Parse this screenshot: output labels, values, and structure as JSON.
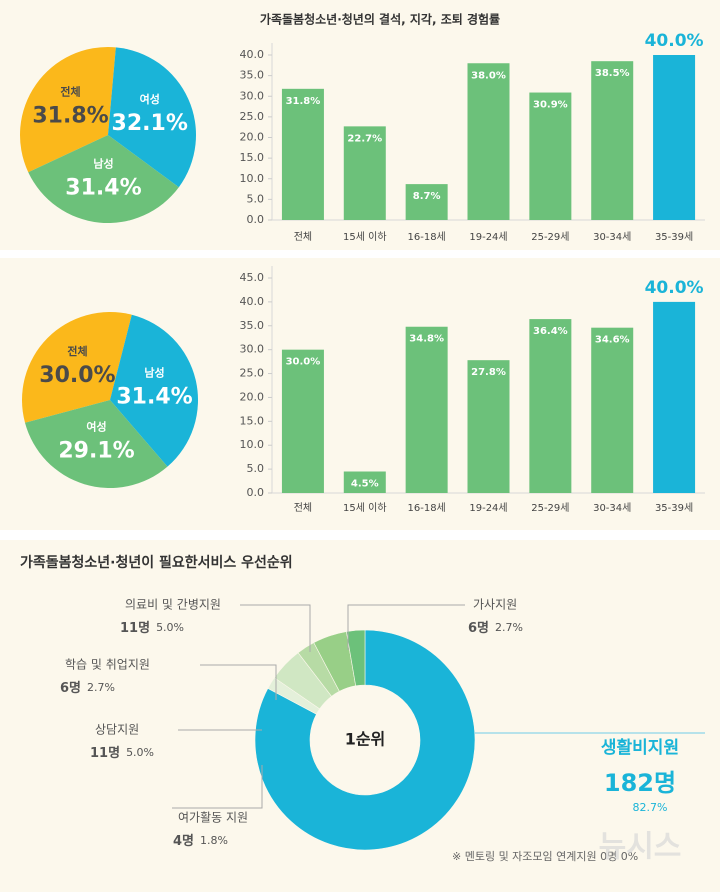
{
  "chart_data": [
    {
      "type": "pie",
      "categories": [
        "전체",
        "여성",
        "남성"
      ],
      "values": [
        31.8,
        32.1,
        31.4
      ],
      "value_labels": [
        "31.8%",
        "32.1%",
        "31.4%"
      ],
      "colors": [
        "#fbb81b",
        "#1ab4d8",
        "#6cc17a"
      ]
    },
    {
      "type": "bar",
      "title": "가족돌봄청소년·청년의 결석, 지각, 조퇴 경험률",
      "categories": [
        "전체",
        "15세 이하",
        "16-18세",
        "19-24세",
        "25-29세",
        "30-34세",
        "35-39세"
      ],
      "values": [
        31.8,
        22.7,
        8.7,
        38.0,
        30.9,
        38.5,
        40.0
      ],
      "value_labels": [
        "31.8%",
        "22.7%",
        "8.7%",
        "38.0%",
        "30.9%",
        "38.5%",
        "40.0%"
      ],
      "colors": [
        "#6cc17a",
        "#6cc17a",
        "#6cc17a",
        "#6cc17a",
        "#6cc17a",
        "#6cc17a",
        "#1ab4d8"
      ],
      "ylim": [
        0,
        40
      ],
      "yticks": [
        {
          "value": 0,
          "label": "0.0"
        },
        {
          "value": 5,
          "label": "5.0"
        },
        {
          "value": 10,
          "label": "10.0"
        },
        {
          "value": 15,
          "label": "15.0"
        },
        {
          "value": 20,
          "label": "20.0"
        },
        {
          "value": 25,
          "label": "25.0"
        },
        {
          "value": 30,
          "label": "30.0"
        },
        {
          "value": 35,
          "label": "35.0"
        },
        {
          "value": 40,
          "label": "40.0"
        }
      ]
    },
    {
      "type": "pie",
      "categories": [
        "전체",
        "남성",
        "여성"
      ],
      "values": [
        30.0,
        31.4,
        29.1
      ],
      "value_labels": [
        "30.0%",
        "31.4%",
        "29.1%"
      ],
      "colors": [
        "#fbb81b",
        "#1ab4d8",
        "#6cc17a"
      ]
    },
    {
      "type": "bar",
      "categories": [
        "전체",
        "15세 이하",
        "16-18세",
        "19-24세",
        "25-29세",
        "30-34세",
        "35-39세"
      ],
      "values": [
        30.0,
        4.5,
        34.8,
        27.8,
        36.4,
        34.6,
        40.0
      ],
      "value_labels": [
        "30.0%",
        "4.5%",
        "34.8%",
        "27.8%",
        "36.4%",
        "34.6%",
        "40.0%"
      ],
      "colors": [
        "#6cc17a",
        "#6cc17a",
        "#6cc17a",
        "#6cc17a",
        "#6cc17a",
        "#6cc17a",
        "#1ab4d8"
      ],
      "ylim": [
        0,
        45
      ],
      "yticks": [
        {
          "value": 0,
          "label": "0.0"
        },
        {
          "value": 5,
          "label": "5.0"
        },
        {
          "value": 10,
          "label": "10.0"
        },
        {
          "value": 15,
          "label": "15.0"
        },
        {
          "value": 20,
          "label": "20.0"
        },
        {
          "value": 25,
          "label": "25.0"
        },
        {
          "value": 30,
          "label": "30.0"
        },
        {
          "value": 35,
          "label": "35.0"
        },
        {
          "value": 40,
          "label": "40.0"
        },
        {
          "value": 45,
          "label": "45.0"
        }
      ]
    },
    {
      "type": "donut",
      "title": "가족돌봄청소년·청년이 필요한서비스 우선순위",
      "center_label": "1순위",
      "categories": [
        "생활비지원",
        "여가활동 지원",
        "상담지원",
        "학습 및 취업지원",
        "의료비 및 간병지원",
        "가사지원"
      ],
      "values": [
        82.7,
        1.8,
        5.0,
        2.7,
        5.0,
        2.7
      ],
      "value_labels": [
        "82.7%",
        "1.8%",
        "5.0%",
        "2.7%",
        "5.0%",
        "2.7%"
      ],
      "count_labels": [
        "182명",
        "4명",
        "11명",
        "6명",
        "11명",
        "6명"
      ],
      "colors": [
        "#1ab4d8",
        "#e4f0da",
        "#d0e7c3",
        "#b7dba5",
        "#98cf87",
        "#6cc17a"
      ],
      "annotation": "※ 멘토링 및 자조모임 연계지원 0명 0%",
      "watermark": "뉴시스"
    }
  ]
}
